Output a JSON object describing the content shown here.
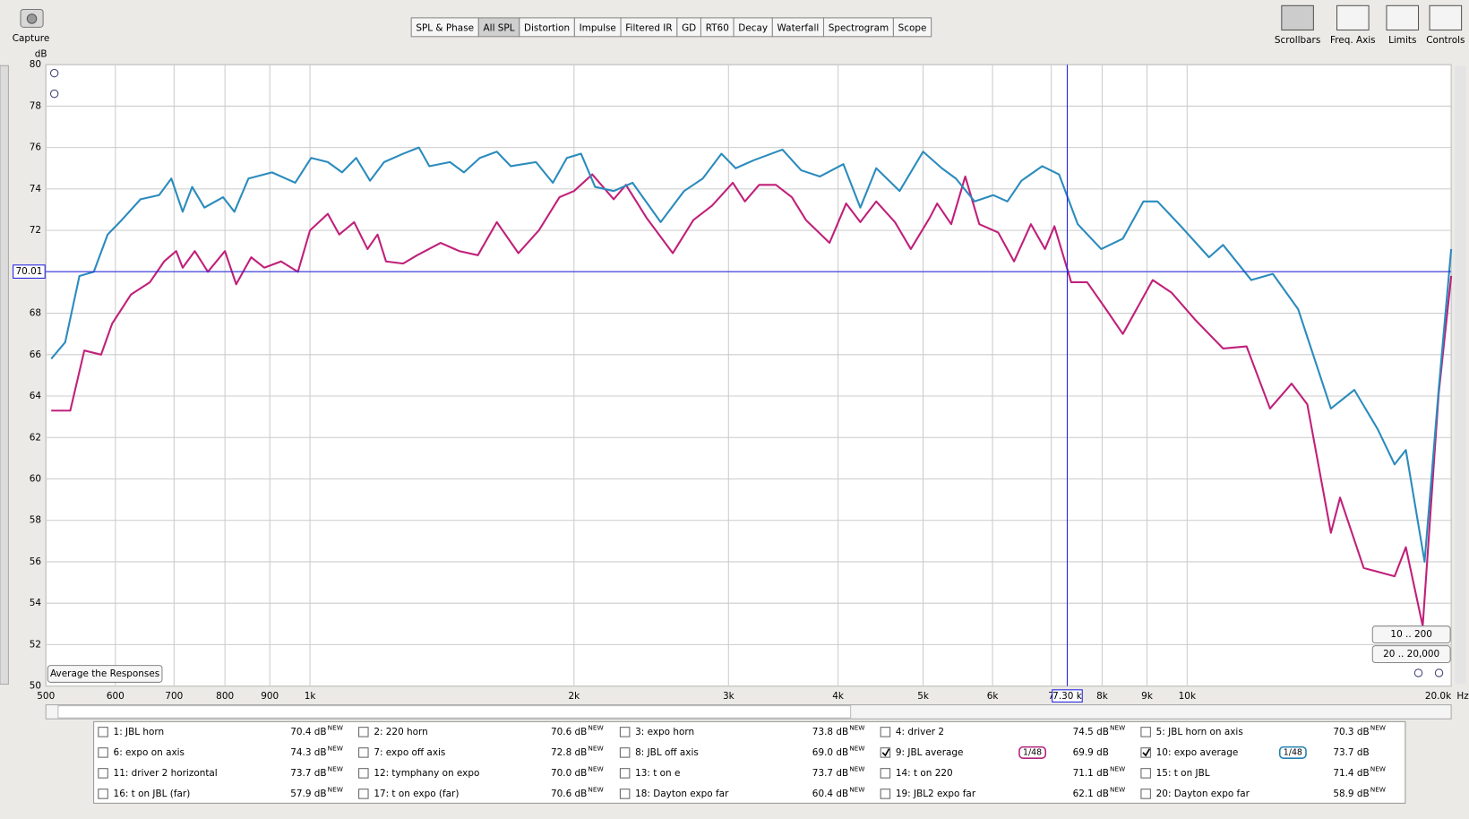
{
  "toolbar": {
    "capture": "Capture",
    "tabs": [
      "SPL & Phase",
      "All SPL",
      "Distortion",
      "Impulse",
      "Filtered IR",
      "GD",
      "RT60",
      "Decay",
      "Waterfall",
      "Spectrogram",
      "Scope"
    ],
    "active_tab": 1,
    "tools": [
      "Scrollbars",
      "Freq. Axis",
      "Limits",
      "Controls"
    ]
  },
  "chart_data": {
    "type": "line",
    "y_unit": "dB",
    "x_unit": "Hz",
    "log_x": true,
    "grid": true,
    "xlim": [
      500,
      20000
    ],
    "ylim": [
      50,
      80
    ],
    "yticks": [
      50,
      52,
      54,
      56,
      58,
      60,
      62,
      64,
      66,
      68,
      70,
      72,
      74,
      76,
      78,
      80
    ],
    "xticks": [
      500,
      600,
      700,
      800,
      900,
      {
        "value": 1000,
        "label": "1k"
      },
      {
        "value": 2000,
        "label": "2k"
      },
      {
        "value": 3000,
        "label": "3k"
      },
      {
        "value": 4000,
        "label": "4k"
      },
      {
        "value": 5000,
        "label": "5k"
      },
      {
        "value": 6000,
        "label": "6k"
      },
      {
        "value": 7000,
        "label": "7"
      },
      {
        "value": 8000,
        "label": "8k"
      },
      {
        "value": 9000,
        "label": "9k"
      },
      {
        "value": 10000,
        "label": "10k"
      },
      {
        "value": 20000,
        "label": "20.0k"
      }
    ],
    "x_cursor": {
      "value": 7300,
      "label": "7.30 k"
    },
    "y_cursor": 70.01,
    "cursor_color": "#2020e0",
    "series": [
      {
        "name": "9: JBL average",
        "color": "#c0207a",
        "x": [
          507,
          533,
          553,
          578,
          595,
          625,
          657,
          682,
          704,
          716,
          739,
          765,
          800,
          824,
          857,
          887,
          927,
          969,
          1000,
          1048,
          1080,
          1123,
          1163,
          1194,
          1221,
          1277,
          1325,
          1409,
          1480,
          1554,
          1633,
          1728,
          1824,
          1925,
          2000,
          2098,
          2220,
          2292,
          2420,
          2592,
          2736,
          2874,
          3034,
          3132,
          3251,
          3398,
          3543,
          3677,
          3911,
          4086,
          4240,
          4421,
          4644,
          4842,
          5087,
          5188,
          5383,
          5585,
          5795,
          6088,
          6348,
          6636,
          6886,
          7058,
          7377,
          7692,
          8081,
          8447,
          9136,
          9597,
          10205,
          10990,
          11688,
          12430,
          13157,
          13709,
          14584,
          14940,
          15896,
          17240,
          17755,
          18560,
          19351,
          20000
        ],
        "values": [
          63.3,
          63.3,
          66.2,
          66.0,
          67.5,
          68.9,
          69.5,
          70.5,
          71.0,
          70.2,
          71.0,
          70.0,
          71.0,
          69.4,
          70.7,
          70.2,
          70.5,
          70.0,
          72.0,
          72.8,
          71.8,
          72.4,
          71.1,
          71.8,
          70.5,
          70.4,
          70.8,
          71.4,
          71.0,
          70.8,
          72.4,
          70.9,
          72.0,
          73.6,
          73.9,
          74.7,
          73.5,
          74.2,
          72.6,
          70.9,
          72.5,
          73.2,
          74.3,
          73.4,
          74.2,
          74.2,
          73.6,
          72.5,
          71.4,
          73.3,
          72.4,
          73.4,
          72.4,
          71.1,
          72.6,
          73.3,
          72.3,
          74.6,
          72.3,
          71.9,
          70.5,
          72.3,
          71.1,
          72.2,
          69.5,
          69.5,
          68.2,
          67.0,
          69.6,
          69.0,
          67.7,
          66.3,
          66.4,
          63.4,
          64.6,
          63.6,
          57.4,
          59.1,
          55.7,
          55.3,
          56.7,
          52.9,
          64.1,
          69.8
        ]
      },
      {
        "name": "10: expo average",
        "color": "#2b8bbd",
        "x": [
          507,
          526,
          546,
          567,
          588,
          610,
          641,
          673,
          695,
          716,
          734,
          758,
          796,
          820,
          851,
          905,
          962,
          1003,
          1048,
          1088,
          1129,
          1171,
          1215,
          1277,
          1331,
          1368,
          1444,
          1498,
          1562,
          1633,
          1694,
          1810,
          1892,
          1963,
          2037,
          2114,
          2220,
          2332,
          2511,
          2670,
          2804,
          2945,
          3057,
          3211,
          3457,
          3631,
          3814,
          4056,
          4240,
          4421,
          4701,
          5000,
          5252,
          5449,
          5724,
          6013,
          6239,
          6474,
          6834,
          7144,
          7504,
          7981,
          8447,
          8917,
          9252,
          9839,
          10592,
          10990,
          11833,
          12522,
          13382,
          14584,
          15510,
          16493,
          17240,
          17755,
          18651,
          19351,
          20000
        ],
        "values": [
          65.8,
          66.6,
          69.8,
          70.0,
          71.8,
          72.5,
          73.5,
          73.7,
          74.5,
          72.9,
          74.1,
          73.1,
          73.6,
          72.9,
          74.5,
          74.8,
          74.3,
          75.5,
          75.3,
          74.8,
          75.5,
          74.4,
          75.3,
          75.7,
          76.0,
          75.1,
          75.3,
          74.8,
          75.5,
          75.8,
          75.1,
          75.3,
          74.3,
          75.5,
          75.7,
          74.1,
          73.9,
          74.3,
          72.4,
          73.9,
          74.5,
          75.7,
          75.0,
          75.4,
          75.9,
          74.9,
          74.6,
          75.2,
          73.1,
          75.0,
          73.9,
          75.8,
          75.0,
          74.5,
          73.4,
          73.7,
          73.4,
          74.4,
          75.1,
          74.7,
          72.3,
          71.1,
          71.6,
          73.4,
          73.4,
          72.2,
          70.7,
          71.3,
          69.6,
          69.9,
          68.2,
          63.4,
          64.3,
          62.4,
          60.7,
          61.4,
          56.0,
          64.3,
          71.1
        ]
      }
    ]
  },
  "buttons": {
    "average": "Average the Responses",
    "range_low": "10 .. 200",
    "range_full": "20 .. 20,000"
  },
  "legend": [
    {
      "label": "1: JBL horn",
      "value": "70.4 dB",
      "badge": "NEW",
      "color": "#c00000",
      "checked": false
    },
    {
      "label": "2: 220 horn",
      "value": "70.6 dB",
      "badge": "NEW",
      "color": "#1a8a1a",
      "checked": false
    },
    {
      "label": "3: expo horn",
      "value": "73.8 dB",
      "badge": "NEW",
      "color": "#5a50d0",
      "checked": false
    },
    {
      "label": "4: driver 2",
      "value": "74.5 dB",
      "badge": "NEW",
      "color": "#b02020",
      "checked": false
    },
    {
      "label": "5: JBL horn on axis",
      "value": "70.3 dB",
      "badge": "NEW",
      "color": "#2090a8",
      "checked": false
    },
    {
      "label": "6: expo on axis",
      "value": "74.3 dB",
      "badge": "NEW",
      "color": "#d07000",
      "checked": false
    },
    {
      "label": "7: expo off axis",
      "value": "72.8 dB",
      "badge": "NEW",
      "color": "#3aa03a",
      "checked": false
    },
    {
      "label": "8: JBL off axis",
      "value": "69.0 dB",
      "badge": "NEW",
      "color": "#7a30d0",
      "checked": false
    },
    {
      "label": "9: JBL average",
      "value": "69.9 dB",
      "smoothing": "1/48",
      "color": "#b0207a",
      "checked": true
    },
    {
      "label": "10: expo average",
      "value": "73.7 dB",
      "smoothing": "1/48",
      "color": "#2080b0",
      "checked": true
    },
    {
      "label": "11: driver 2 horizontal",
      "value": "73.7 dB",
      "badge": "NEW",
      "color": "#b00000",
      "checked": false
    },
    {
      "label": "12: tymphany on expo",
      "value": "70.0 dB",
      "badge": "NEW",
      "color": "#207020",
      "checked": false
    },
    {
      "label": "13: t on e",
      "value": "73.7 dB",
      "badge": "NEW",
      "color": "#7030c0",
      "checked": false
    },
    {
      "label": "14: t on 220",
      "value": "71.1 dB",
      "badge": "NEW",
      "color": "#a03030",
      "checked": false
    },
    {
      "label": "15: t on JBL",
      "value": "71.4 dB",
      "badge": "NEW",
      "color": "#2080a0",
      "checked": false
    },
    {
      "label": "16: t on JBL (far)",
      "value": "57.9 dB",
      "badge": "NEW",
      "color": "#c09000",
      "checked": false
    },
    {
      "label": "17: t on expo (far)",
      "value": "70.6 dB",
      "badge": "NEW",
      "color": "#30a040",
      "checked": false
    },
    {
      "label": "18: Dayton expo far",
      "value": "60.4 dB",
      "badge": "NEW",
      "color": "#8030c0",
      "checked": false
    },
    {
      "label": "19: JBL2 expo far",
      "value": "62.1 dB",
      "badge": "NEW",
      "color": "#a02050",
      "checked": false
    },
    {
      "label": "20: Dayton expo far",
      "value": "58.9 dB",
      "badge": "NEW",
      "color": "#2090a8",
      "checked": false
    }
  ]
}
